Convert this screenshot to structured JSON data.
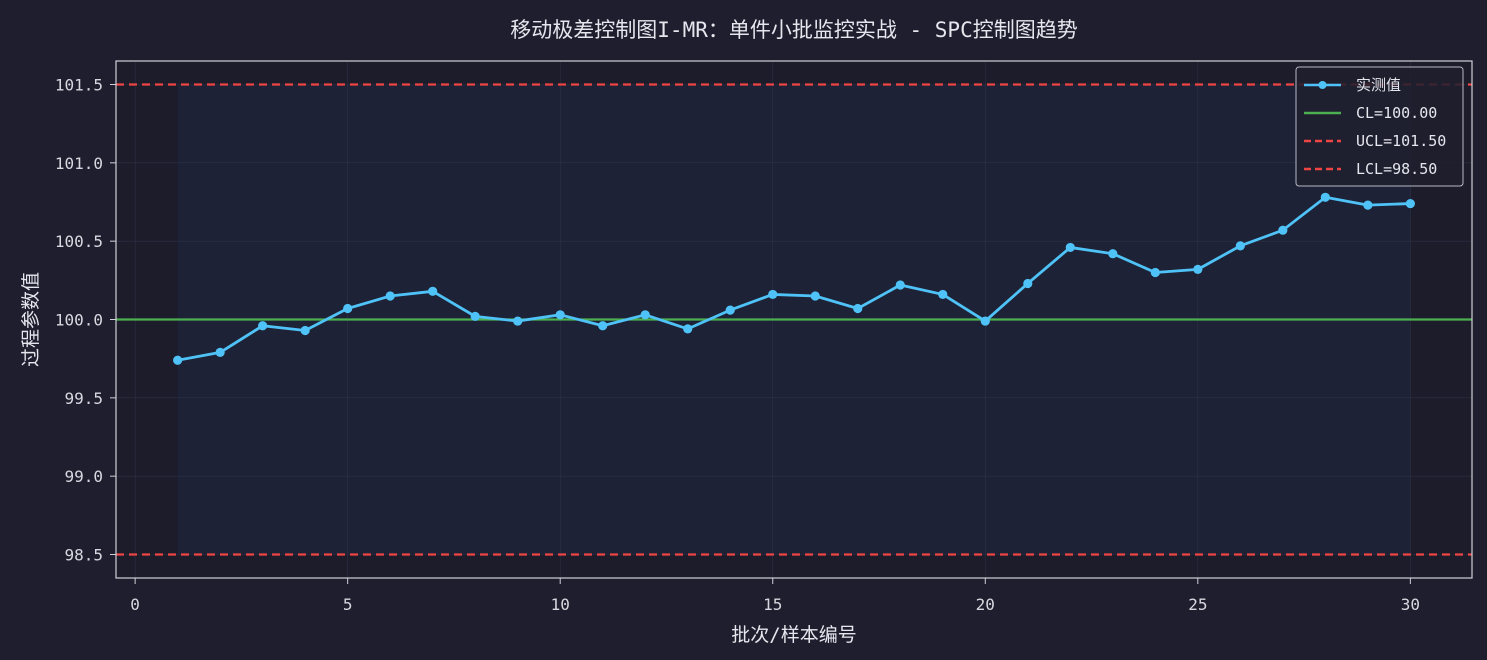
{
  "chart_data": {
    "type": "line",
    "title": "移动极差控制图I-MR：单件小批监控实战 - SPC控制图趋势",
    "xlabel": "批次/样本编号",
    "ylabel": "过程参数值",
    "xlim": [
      -0.45,
      31.45
    ],
    "ylim": [
      98.35,
      101.65
    ],
    "xticks": [
      0,
      5,
      10,
      15,
      20,
      25,
      30
    ],
    "yticks": [
      98.5,
      99.0,
      99.5,
      100.0,
      100.5,
      101.0,
      101.5
    ],
    "grid": true,
    "legend_position": "top-right",
    "series": [
      {
        "name": "实测值",
        "color": "#4fc3f7",
        "x": [
          1,
          2,
          3,
          4,
          5,
          6,
          7,
          8,
          9,
          10,
          11,
          12,
          13,
          14,
          15,
          16,
          17,
          18,
          19,
          20,
          21,
          22,
          23,
          24,
          25,
          26,
          27,
          28,
          29,
          30
        ],
        "values": [
          99.74,
          99.79,
          99.96,
          99.93,
          100.07,
          100.15,
          100.18,
          100.02,
          99.99,
          100.03,
          99.96,
          100.03,
          99.94,
          100.06,
          100.16,
          100.15,
          100.07,
          100.22,
          100.16,
          99.99,
          100.23,
          100.46,
          100.42,
          100.3,
          100.32,
          100.47,
          100.57,
          100.78,
          100.73,
          100.74
        ]
      }
    ],
    "reference_lines": [
      {
        "name": "CL=100.00",
        "value": 100.0,
        "color": "#4caf50",
        "style": "solid"
      },
      {
        "name": "UCL=101.50",
        "value": 101.5,
        "color": "#ef4444",
        "style": "dashed"
      },
      {
        "name": "LCL=98.50",
        "value": 98.5,
        "color": "#ef4444",
        "style": "dashed"
      }
    ],
    "shaded_band": {
      "x_range": [
        1,
        30
      ],
      "y_range": [
        98.5,
        101.5
      ],
      "color": "#3b82f6"
    }
  }
}
